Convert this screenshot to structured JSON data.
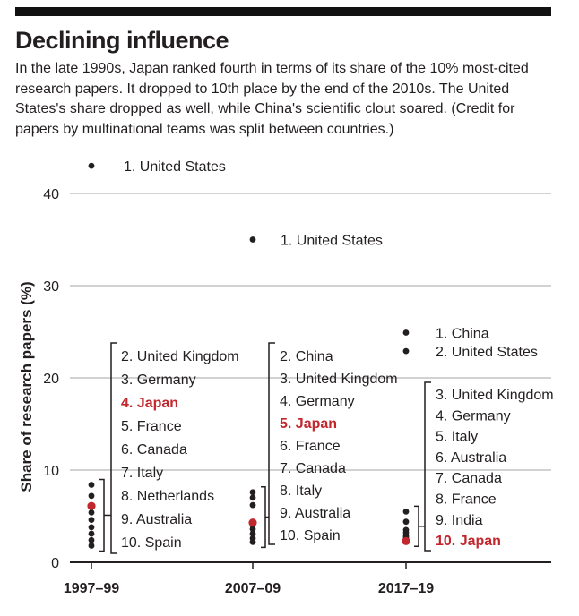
{
  "header": {
    "title": "Declining influence",
    "subtitle": "In the late 1990s, Japan ranked fourth in terms of its share of the 10% most-cited research papers. It dropped to 10th place by the end of the 2010s. The United States's share dropped as well, while China's scientific clout soared. (Credit for papers by multinational teams was split between countries.)"
  },
  "colors": {
    "highlight": "#c1272d",
    "dot": "#231f20",
    "grid": "#a6a6a6"
  },
  "chart_data": {
    "type": "scatter",
    "title": "Declining influence",
    "ylabel": "Share of research papers (%)",
    "xlabel": "",
    "ylim": [
      0,
      40
    ],
    "yticks": [
      0,
      10,
      20,
      30,
      40
    ],
    "grid": true,
    "categories": [
      "1997–99",
      "2007–09",
      "2017–19"
    ],
    "periods": [
      {
        "label": "1997–99",
        "points": [
          {
            "rank": 1,
            "country": "United States",
            "value": 43.0,
            "label": "1. United States"
          },
          {
            "rank": 2,
            "country": "United Kingdom",
            "value": 8.4,
            "label": "2. United Kingdom"
          },
          {
            "rank": 3,
            "country": "Germany",
            "value": 7.2,
            "label": "3. Germany"
          },
          {
            "rank": 4,
            "country": "Japan",
            "value": 6.1,
            "label": "4. Japan",
            "highlight": true
          },
          {
            "rank": 5,
            "country": "France",
            "value": 5.4,
            "label": "5. France"
          },
          {
            "rank": 6,
            "country": "Canada",
            "value": 4.6,
            "label": "6. Canada"
          },
          {
            "rank": 7,
            "country": "Italy",
            "value": 3.8,
            "label": "7. Italy"
          },
          {
            "rank": 8,
            "country": "Netherlands",
            "value": 3.1,
            "label": "8. Netherlands"
          },
          {
            "rank": 9,
            "country": "Australia",
            "value": 2.4,
            "label": "9. Australia"
          },
          {
            "rank": 10,
            "country": "Spain",
            "value": 1.8,
            "label": "10. Spain"
          }
        ]
      },
      {
        "label": "2007–09",
        "points": [
          {
            "rank": 1,
            "country": "United States",
            "value": 35.0,
            "label": "1. United States"
          },
          {
            "rank": 2,
            "country": "China",
            "value": 7.6,
            "label": "2. China"
          },
          {
            "rank": 3,
            "country": "United Kingdom",
            "value": 7.0,
            "label": "3. United Kingdom"
          },
          {
            "rank": 4,
            "country": "Germany",
            "value": 6.2,
            "label": "4. Germany"
          },
          {
            "rank": 5,
            "country": "Japan",
            "value": 4.3,
            "label": "5. Japan",
            "highlight": true
          },
          {
            "rank": 6,
            "country": "France",
            "value": 4.0,
            "label": "6. France"
          },
          {
            "rank": 7,
            "country": "Canada",
            "value": 3.6,
            "label": "7. Canada"
          },
          {
            "rank": 8,
            "country": "Italy",
            "value": 3.1,
            "label": "8. Italy"
          },
          {
            "rank": 9,
            "country": "Australia",
            "value": 2.6,
            "label": "9. Australia"
          },
          {
            "rank": 10,
            "country": "Spain",
            "value": 2.2,
            "label": "10. Spain"
          }
        ]
      },
      {
        "label": "2017–19",
        "points": [
          {
            "rank": 1,
            "country": "China",
            "value": 24.9,
            "label": "1. China"
          },
          {
            "rank": 2,
            "country": "United States",
            "value": 22.9,
            "label": "2. United States"
          },
          {
            "rank": 3,
            "country": "United Kingdom",
            "value": 5.5,
            "label": "3. United Kingdom"
          },
          {
            "rank": 4,
            "country": "Germany",
            "value": 4.4,
            "label": "4. Germany"
          },
          {
            "rank": 5,
            "country": "Italy",
            "value": 3.5,
            "label": "5. Italy"
          },
          {
            "rank": 6,
            "country": "Australia",
            "value": 3.2,
            "label": "6. Australia"
          },
          {
            "rank": 7,
            "country": "Canada",
            "value": 2.9,
            "label": "7. Canada"
          },
          {
            "rank": 8,
            "country": "France",
            "value": 2.7,
            "label": "8. France"
          },
          {
            "rank": 9,
            "country": "India",
            "value": 2.5,
            "label": "9. India"
          },
          {
            "rank": 10,
            "country": "Japan",
            "value": 2.3,
            "label": "10. Japan",
            "highlight": true
          }
        ]
      }
    ]
  }
}
